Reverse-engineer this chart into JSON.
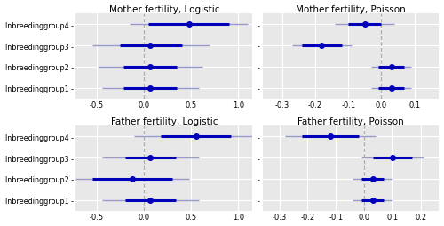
{
  "panels": [
    {
      "title": "Mother fertility, Logistic",
      "xlim": [
        -0.72,
        1.15
      ],
      "xticks": [
        -0.5,
        0.0,
        0.5,
        1.0
      ],
      "xticklabels": [
        "-0.5",
        "0.0",
        "0.5",
        "1.0"
      ],
      "vline": 0.0,
      "show_ylabels": true,
      "groups": [
        "Inbreedinggroup4",
        "Inbreedinggroup3",
        "Inbreedinggroup2",
        "Inbreedinggroup1"
      ],
      "estimates": [
        0.48,
        0.07,
        0.07,
        0.07
      ],
      "ci95_low": [
        0.05,
        -0.25,
        -0.22,
        -0.22
      ],
      "ci95_high": [
        0.9,
        0.4,
        0.35,
        0.35
      ],
      "ci99_low": [
        -0.15,
        -0.55,
        -0.48,
        -0.44
      ],
      "ci99_high": [
        1.1,
        0.7,
        0.62,
        0.58
      ]
    },
    {
      "title": "Mother fertility, Poisson",
      "xlim": [
        -0.36,
        0.175
      ],
      "xticks": [
        -0.3,
        -0.2,
        -0.1,
        0.0,
        0.1
      ],
      "xticklabels": [
        "-0.3",
        "-0.2",
        "-0.1",
        "0.0",
        "0.1"
      ],
      "vline": 0.0,
      "show_ylabels": false,
      "groups": [
        "",
        "",
        "",
        ""
      ],
      "estimates": [
        -0.05,
        -0.18,
        0.03,
        0.03
      ],
      "ci95_low": [
        -0.1,
        -0.24,
        -0.01,
        -0.01
      ],
      "ci95_high": [
        0.0,
        -0.12,
        0.07,
        0.07
      ],
      "ci99_low": [
        -0.14,
        -0.27,
        -0.03,
        -0.03
      ],
      "ci99_high": [
        0.04,
        -0.09,
        0.09,
        0.09
      ]
    },
    {
      "title": "Father fertility, Logistic",
      "xlim": [
        -0.72,
        1.15
      ],
      "xticks": [
        -0.5,
        0.0,
        0.5,
        1.0
      ],
      "xticklabels": [
        "-0.5",
        "0.0",
        "0.5",
        "1.0"
      ],
      "vline": 0.0,
      "show_ylabels": true,
      "groups": [
        "Inbreedinggroup4",
        "Inbreedinggroup3",
        "Inbreedinggroup2",
        "Inbreedinggroup1"
      ],
      "estimates": [
        0.55,
        0.07,
        -0.12,
        0.07
      ],
      "ci95_low": [
        0.18,
        -0.2,
        -0.55,
        -0.2
      ],
      "ci95_high": [
        0.92,
        0.34,
        0.3,
        0.34
      ],
      "ci99_low": [
        -0.1,
        -0.44,
        -0.72,
        -0.44
      ],
      "ci99_high": [
        1.2,
        0.58,
        0.48,
        0.58
      ]
    },
    {
      "title": "Father fertility, Poisson",
      "xlim": [
        -0.36,
        0.265
      ],
      "xticks": [
        -0.3,
        -0.2,
        -0.1,
        0.0,
        0.1,
        0.2
      ],
      "xticklabels": [
        "-0.3",
        "-0.2",
        "-0.1",
        "0.0",
        "0.1",
        "0.2"
      ],
      "vline": 0.0,
      "show_ylabels": false,
      "groups": [
        "",
        "",
        "",
        ""
      ],
      "estimates": [
        -0.12,
        0.1,
        0.03,
        0.03
      ],
      "ci95_low": [
        -0.22,
        0.03,
        -0.01,
        -0.01
      ],
      "ci95_high": [
        -0.02,
        0.17,
        0.07,
        0.07
      ],
      "ci99_low": [
        -0.28,
        -0.01,
        -0.04,
        -0.04
      ],
      "ci99_high": [
        0.04,
        0.21,
        0.1,
        0.1
      ]
    }
  ],
  "dot_color": "#0000bb",
  "line_color_thick": "#0000bb",
  "line_color_thin": "#9999cc",
  "vline_color": "#b0b0b0",
  "bg_color": "#e8e8e8",
  "grid_color": "#ffffff",
  "dot_size": 4.0,
  "thick_lw": 2.2,
  "thin_lw": 1.0
}
